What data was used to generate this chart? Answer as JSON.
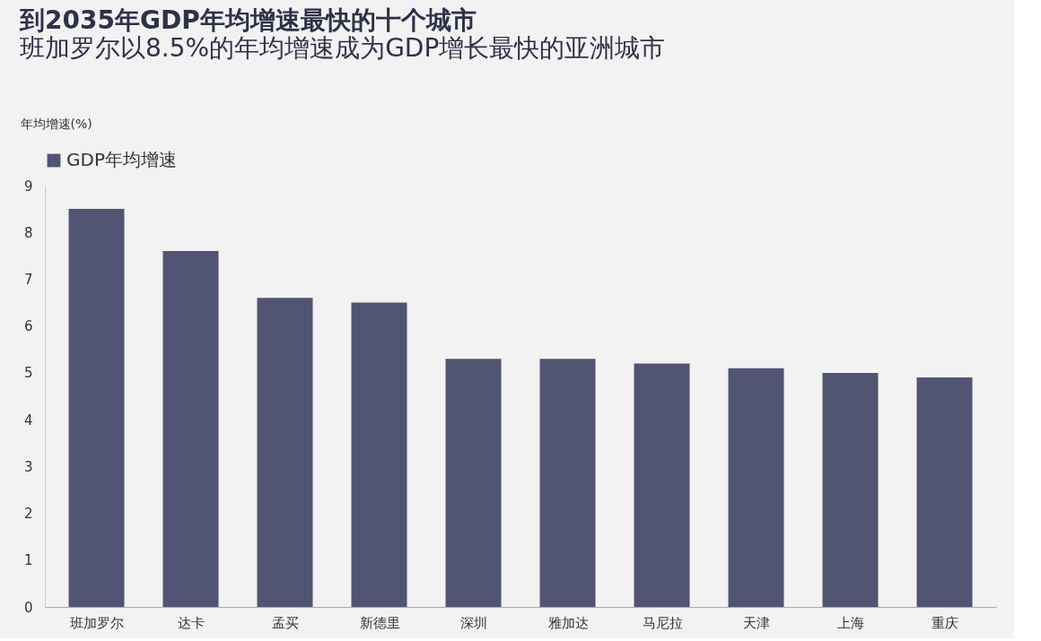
{
  "chart_data": {
    "type": "bar",
    "title": "到2035年GDP年均增速最快的十个城市",
    "subtitle": "班加罗尔以8.5%的年均增速成为GDP增长最快的亚洲城市",
    "ylabel": "年均增速(%)",
    "categories": [
      "班加罗尔",
      "达卡",
      "孟买",
      "新德里",
      "深圳",
      "雅加达",
      "马尼拉",
      "天津",
      "上海",
      "重庆"
    ],
    "series": [
      {
        "name": "GDP年均增速",
        "color": "#525473",
        "values": [
          8.5,
          7.6,
          6.6,
          6.5,
          5.3,
          5.3,
          5.2,
          5.1,
          5.0,
          4.9
        ]
      }
    ],
    "ylim": [
      0,
      9
    ],
    "yticks": [
      0,
      1,
      2,
      3,
      4,
      5,
      6,
      7,
      8,
      9
    ],
    "grid": false,
    "legend": "top left"
  }
}
